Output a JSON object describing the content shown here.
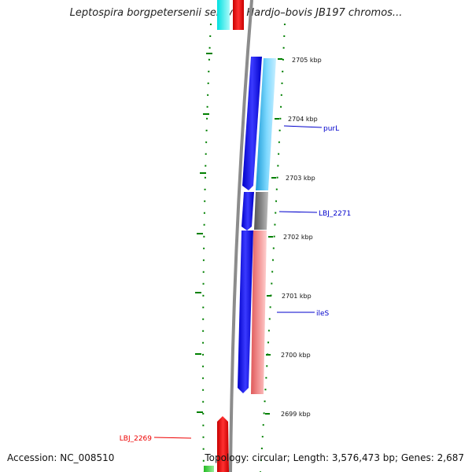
{
  "title": "Leptospira borgpetersenii serovar Hardjo–bovis JB197 chromos...",
  "accession_text": "Accession: NC_008510",
  "meta_text": "Topology: circular; Length: 3,576,473 bp; Genes: 2,687",
  "colors": {
    "backbone": "#8a8a8a",
    "forward_strand": "#0000ff",
    "gene_cyan": "#33ccff",
    "gene_grey": "#707070",
    "gene_salmon": "#f07b7b",
    "gene_red": "#ff0000",
    "gc_dots": "#008000",
    "ticks": "#008000",
    "label_blue": "#0000cc",
    "label_red": "#ee0000"
  },
  "ticks": [
    {
      "label": "2705 kbp"
    },
    {
      "label": "2704 kbp"
    },
    {
      "label": "2703 kbp"
    },
    {
      "label": "2702 kbp"
    },
    {
      "label": "2701 kbp"
    },
    {
      "label": "2700 kbp"
    },
    {
      "label": "2699 kbp"
    }
  ],
  "gene_labels": [
    {
      "name": "purL",
      "color": "#0000cc"
    },
    {
      "name": "LBJ_2271",
      "color": "#0000cc"
    },
    {
      "name": "ileS",
      "color": "#0000cc"
    },
    {
      "name": "LBJ_2269",
      "color": "#ee0000"
    }
  ]
}
